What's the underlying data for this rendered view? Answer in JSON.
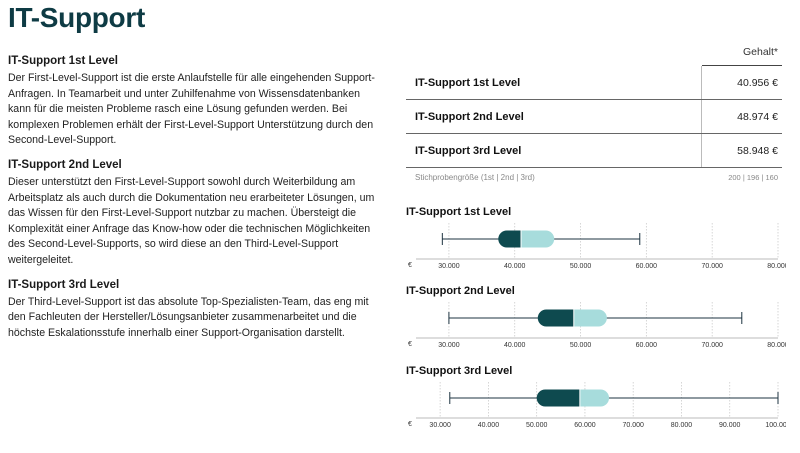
{
  "page": {
    "title": "IT-Support"
  },
  "descriptions": [
    {
      "heading": "IT-Support 1st Level",
      "text": "Der First-Level-Support ist die erste Anlaufstelle für alle eingehenden Support-Anfragen. In Teamarbeit und unter Zuhilfenahme von Wissensdatenbanken kann für die meisten Probleme rasch eine Lösung gefunden werden. Bei komplexen Problemen erhält der First-Level-Support Unterstützung durch den Second-Level-Support."
    },
    {
      "heading": "IT-Support 2nd Level",
      "text": "Dieser unterstützt den First-Level-Support sowohl durch Weiterbildung am Arbeitsplatz als auch durch die Dokumentation neu erarbeiteter Lösungen, um das Wissen für den First-Level-Support nutzbar zu machen. Übersteigt die Komplexität einer Anfrage das Know-how oder die technischen Möglichkeiten des Second-Level-Supports, so wird diese an den Third-Level-Support weitergeleitet."
    },
    {
      "heading": "IT-Support 3rd Level",
      "text": "Der Third-Level-Support ist das absolute Top-Spezialisten-Team, das eng mit den Fachleuten der Hersteller/Lösungsanbieter zusammenarbeitet und die höchste Eskalationsstufe innerhalb einer Support-Organisation darstellt."
    }
  ],
  "salary_table": {
    "column_header": "Gehalt*",
    "rows": [
      {
        "role": "IT-Support 1st Level",
        "amount": "40.956 €"
      },
      {
        "role": "IT-Support 2nd Level",
        "amount": "48.974 €"
      },
      {
        "role": "IT-Support 3rd Level",
        "amount": "58.948 €"
      }
    ],
    "sample_label": "Stichprobengröße (1st | 2nd | 3rd)",
    "sample_values": "200 | 196 | 160"
  },
  "colors": {
    "title": "#0e3b44",
    "box_dark": "#0e4a4f",
    "box_light": "#a7dcdc",
    "whisker": "#1c3340"
  },
  "chart_data": [
    {
      "type": "boxplot",
      "title": "IT-Support 1st Level",
      "currency": "€",
      "xlim": [
        25000,
        80000
      ],
      "ticks": [
        30000,
        40000,
        50000,
        60000,
        70000,
        80000
      ],
      "tick_labels": [
        "30.000",
        "40.000",
        "50.000",
        "60.000",
        "70.000",
        "80.000"
      ],
      "min": 29000,
      "q1": 37500,
      "median": 40956,
      "q3": 46000,
      "max": 59000
    },
    {
      "type": "boxplot",
      "title": "IT-Support 2nd Level",
      "currency": "€",
      "xlim": [
        25000,
        80000
      ],
      "ticks": [
        30000,
        40000,
        50000,
        60000,
        70000,
        80000
      ],
      "tick_labels": [
        "30.000",
        "40.000",
        "50.000",
        "60.000",
        "70.000",
        "80.000"
      ],
      "min": 30000,
      "q1": 43500,
      "median": 48974,
      "q3": 54000,
      "max": 74500
    },
    {
      "type": "boxplot",
      "title": "IT-Support 3rd Level",
      "currency": "€",
      "xlim": [
        25000,
        100000
      ],
      "ticks": [
        30000,
        40000,
        50000,
        60000,
        70000,
        80000,
        90000,
        100000
      ],
      "tick_labels": [
        "30.000",
        "40.000",
        "50.000",
        "60.000",
        "70.000",
        "80.000",
        "90.000",
        "100.000"
      ],
      "min": 32000,
      "q1": 50000,
      "median": 58948,
      "q3": 65000,
      "max": 100000
    }
  ]
}
